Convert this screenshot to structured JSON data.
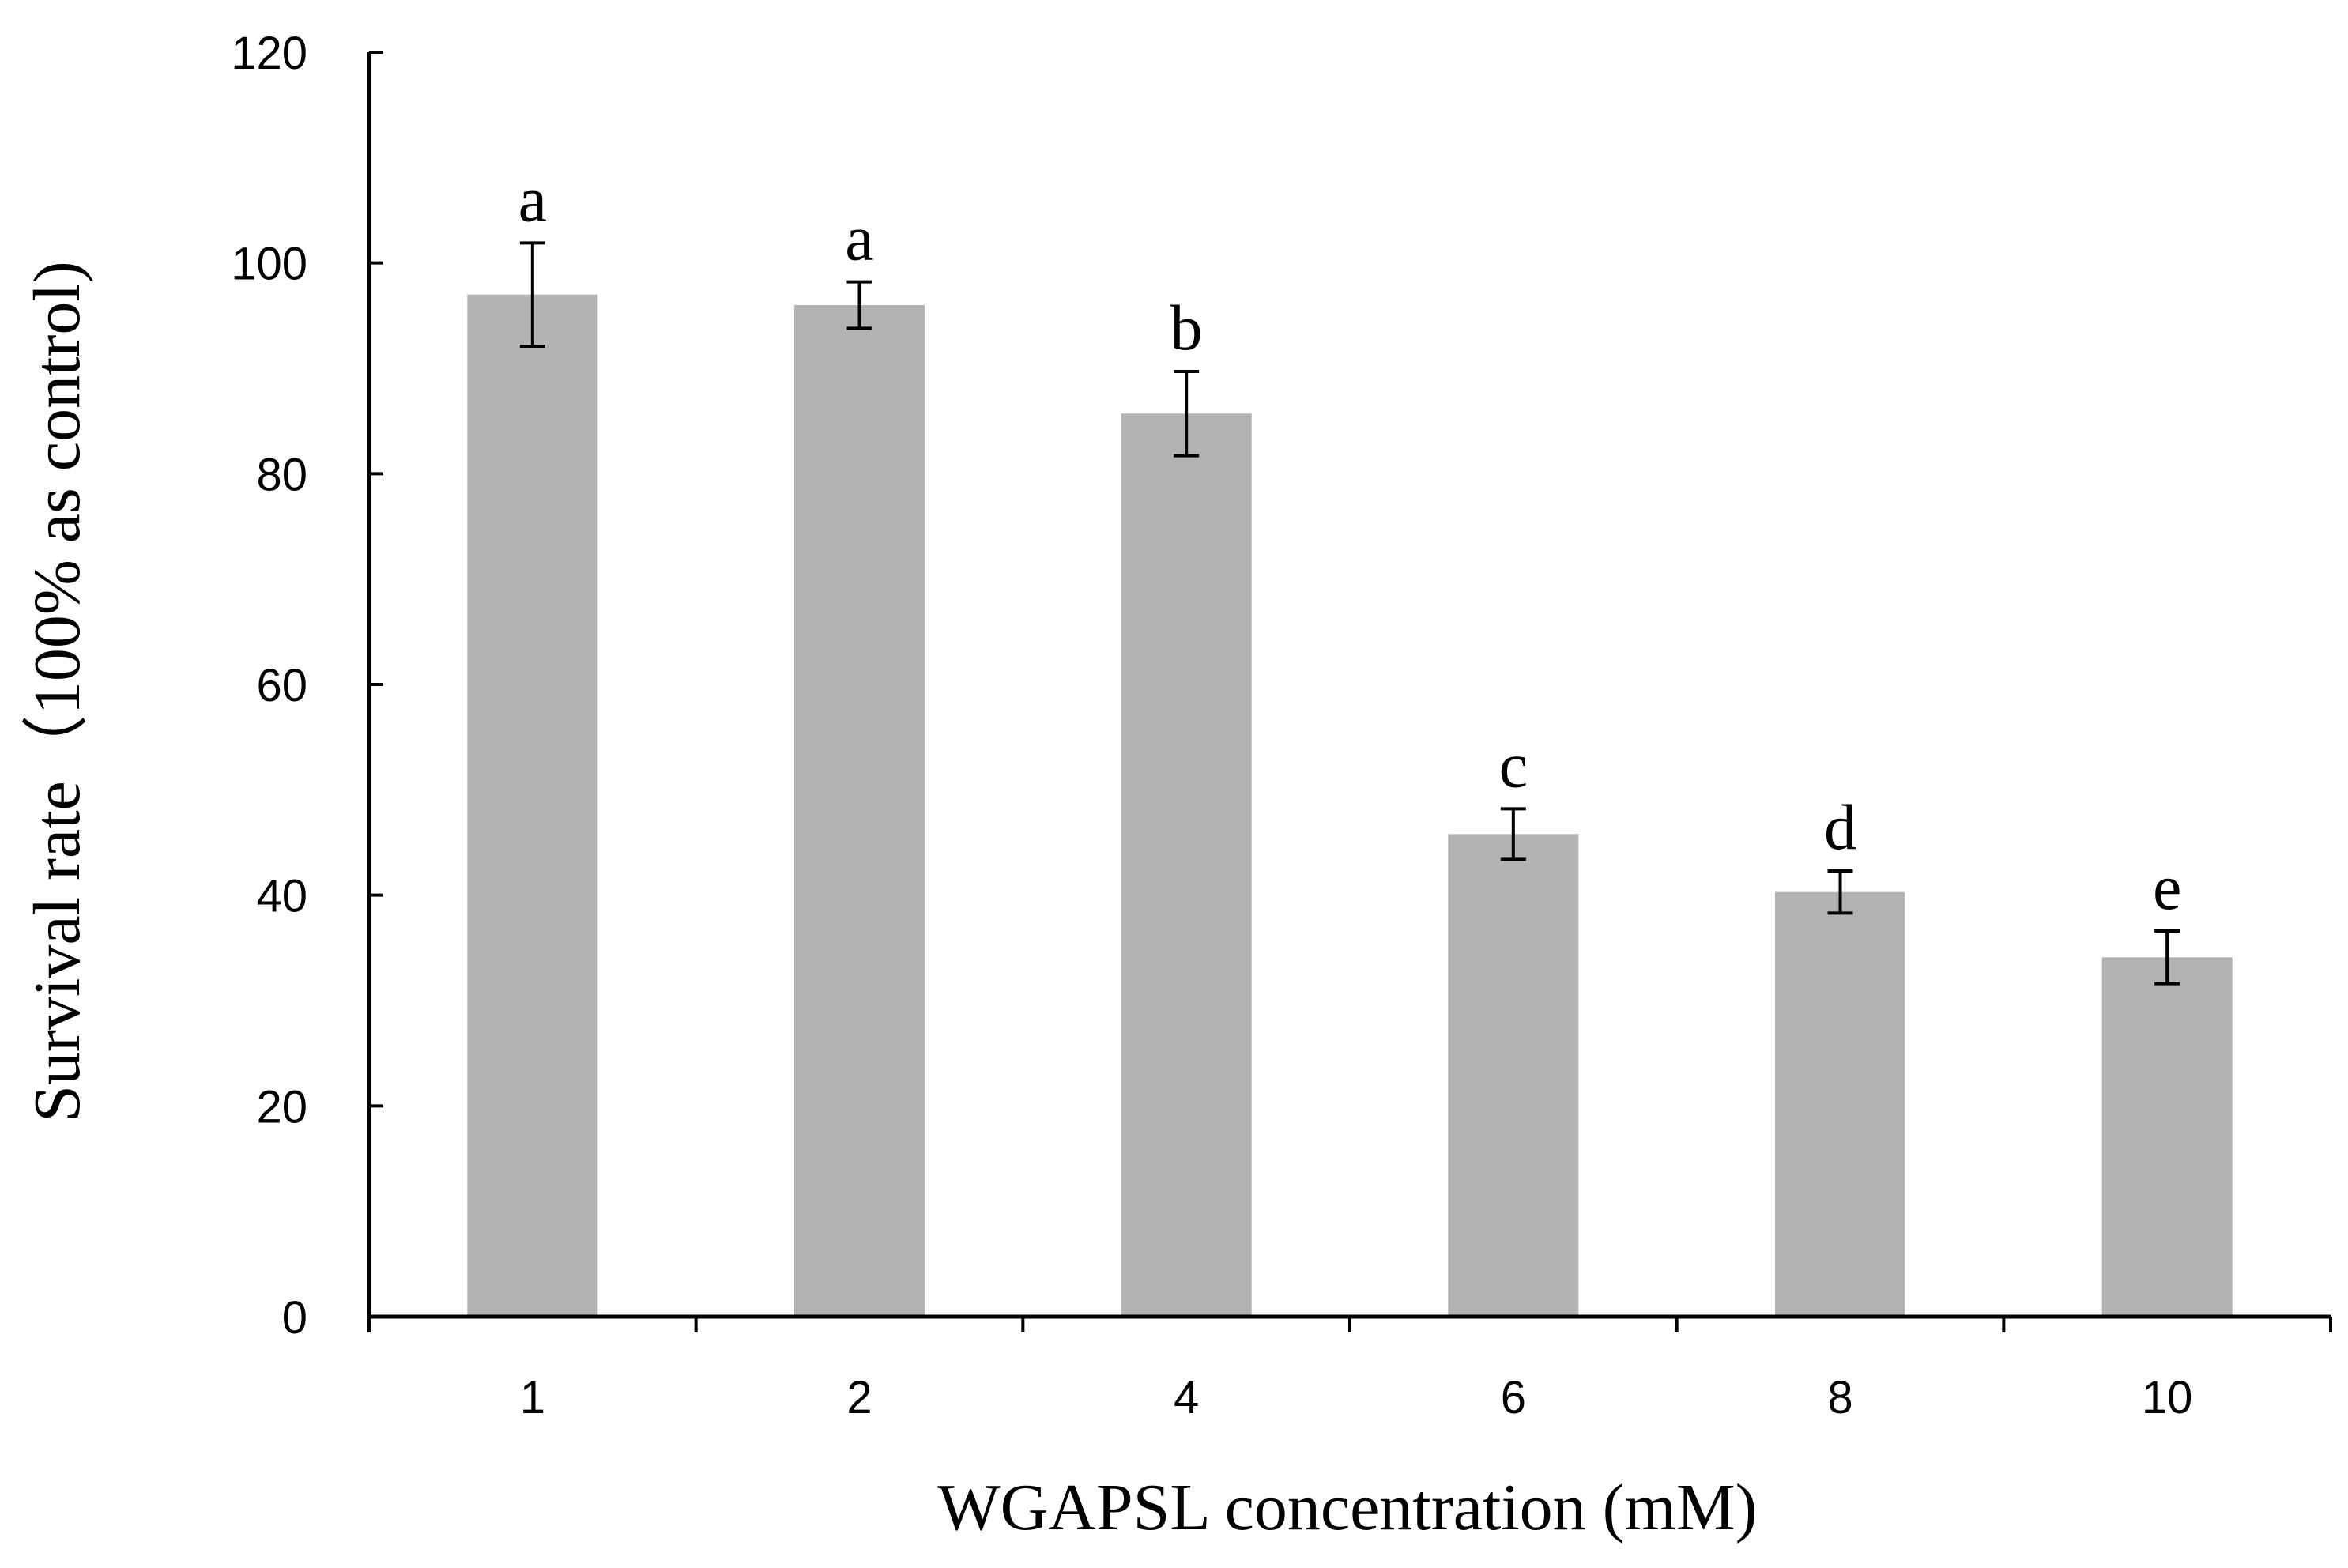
{
  "chart_data": {
    "type": "bar",
    "title": "",
    "xlabel": "WGAPSL concentration (mM)",
    "ylabel": "Survival rate（100% as control)",
    "categories": [
      "1",
      "2",
      "4",
      "6",
      "8",
      "10"
    ],
    "values": [
      97,
      96,
      85.7,
      45.8,
      40.3,
      34.1
    ],
    "errors": [
      4.9,
      2.2,
      4.0,
      2.4,
      2.0,
      2.5
    ],
    "significance": [
      "a",
      "a",
      "b",
      "c",
      "d",
      "e"
    ],
    "ylim": [
      0,
      120
    ],
    "yticks": [
      0,
      20,
      40,
      60,
      80,
      100,
      120
    ],
    "grid": false,
    "colors": {
      "bar": "#b3b3b3",
      "axis": "#000000",
      "error": "#000000"
    }
  }
}
